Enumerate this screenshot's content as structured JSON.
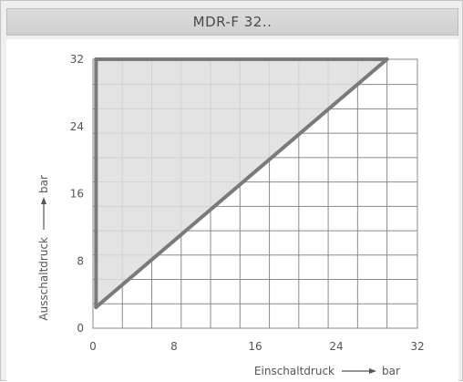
{
  "window": {
    "title": "MDR-F 32.."
  },
  "chart_data": {
    "type": "area",
    "title": "MDR-F 32..",
    "xlabel": "Einschaltdruck",
    "xunit": "bar",
    "ylabel": "Ausschaltdruck",
    "yunit": "bar",
    "xlim": [
      0,
      32
    ],
    "ylim": [
      0,
      32
    ],
    "xticks": [
      0,
      8,
      16,
      24,
      32
    ],
    "yticks": [
      0,
      8,
      16,
      24,
      32
    ],
    "xtick_labels": [
      "0",
      "8",
      "16",
      "24",
      "32"
    ],
    "ytick_labels": [
      "0",
      "8",
      "16",
      "24",
      "32"
    ],
    "grid": true,
    "grid_step": 2.9,
    "region": {
      "fill": "#dedede",
      "polygon": [
        [
          0.3,
          2.5
        ],
        [
          0.3,
          32
        ],
        [
          29,
          32
        ]
      ]
    },
    "series": [
      {
        "points": [
          [
            0.3,
            2.5
          ],
          [
            29,
            32
          ]
        ],
        "color": "#7a7a7a"
      }
    ],
    "boundary_color": "#7a7a7a",
    "grid_color": "#8a8a8a"
  }
}
